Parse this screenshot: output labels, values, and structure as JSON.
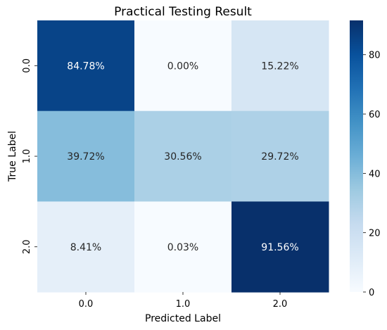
{
  "chart_data": {
    "type": "heatmap",
    "title": "Practical Testing Result",
    "xlabel": "Predicted Label",
    "ylabel": "True Label",
    "x_categories": [
      "0.0",
      "1.0",
      "2.0"
    ],
    "y_categories": [
      "0.0",
      "1.0",
      "2.0"
    ],
    "values": [
      [
        84.78,
        0.0,
        15.22
      ],
      [
        39.72,
        30.56,
        29.72
      ],
      [
        8.41,
        0.03,
        91.56
      ]
    ],
    "cell_labels": [
      [
        "84.78%",
        "0.00%",
        "15.22%"
      ],
      [
        "39.72%",
        "30.56%",
        "29.72%"
      ],
      [
        "8.41%",
        "0.03%",
        "91.56%"
      ]
    ],
    "colormap": "Blues",
    "vmin": 0,
    "vmax": 91.56,
    "colorbar_ticks": [
      "0",
      "20",
      "40",
      "60",
      "80"
    ],
    "colors": {
      "low": "#f7fbff",
      "high": "#08306b"
    }
  }
}
